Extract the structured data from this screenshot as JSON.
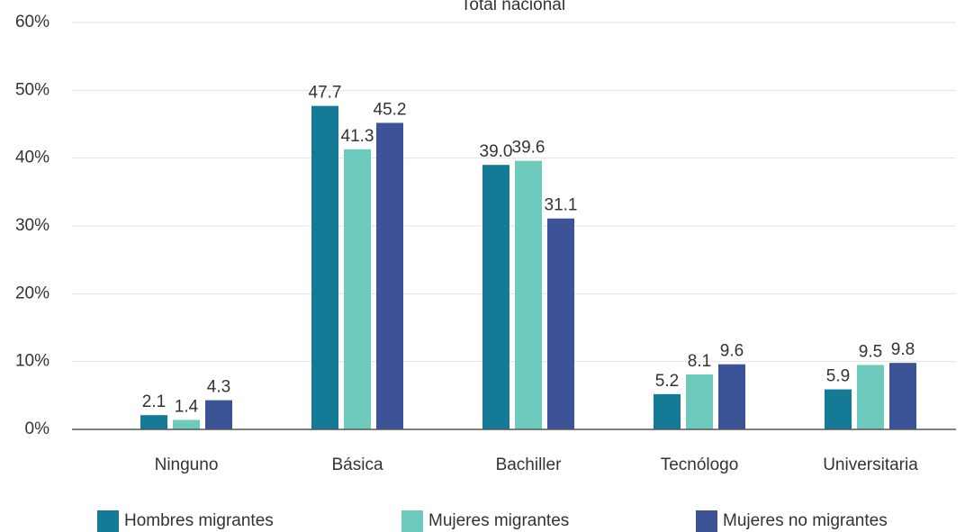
{
  "chart_data": {
    "type": "bar",
    "title": "Total nacional",
    "categories": [
      "Ninguno",
      "Básica",
      "Bachiller",
      "Tecnólogo",
      "Universitaria"
    ],
    "series": [
      {
        "name": "Hombres migrantes",
        "color": "#157a96",
        "values": [
          2.1,
          47.7,
          39,
          5.2,
          5.9
        ],
        "value_labels": [
          "2.1",
          "47.7",
          "39.0",
          "5.2",
          "5.9"
        ]
      },
      {
        "name": "Mujeres migrantes",
        "color": "#6ecabd",
        "values": [
          1.4,
          41.3,
          39.6,
          8.1,
          9.5
        ]
      },
      {
        "name": "Mujeres no migrantes",
        "color": "#3c5397",
        "values": [
          4.3,
          45.2,
          31.1,
          9.6,
          9.8
        ]
      }
    ],
    "ylim": [
      0,
      60
    ],
    "yticks": [
      {
        "value": 0,
        "label": "0%"
      },
      {
        "value": 10,
        "label": "10%"
      },
      {
        "value": 20,
        "label": "20%"
      },
      {
        "value": 30,
        "label": "30%"
      },
      {
        "value": 40,
        "label": "40%"
      },
      {
        "value": 50,
        "label": "50%"
      },
      {
        "value": 60,
        "label": "60%"
      }
    ],
    "grid": true,
    "legend": "bottom"
  }
}
